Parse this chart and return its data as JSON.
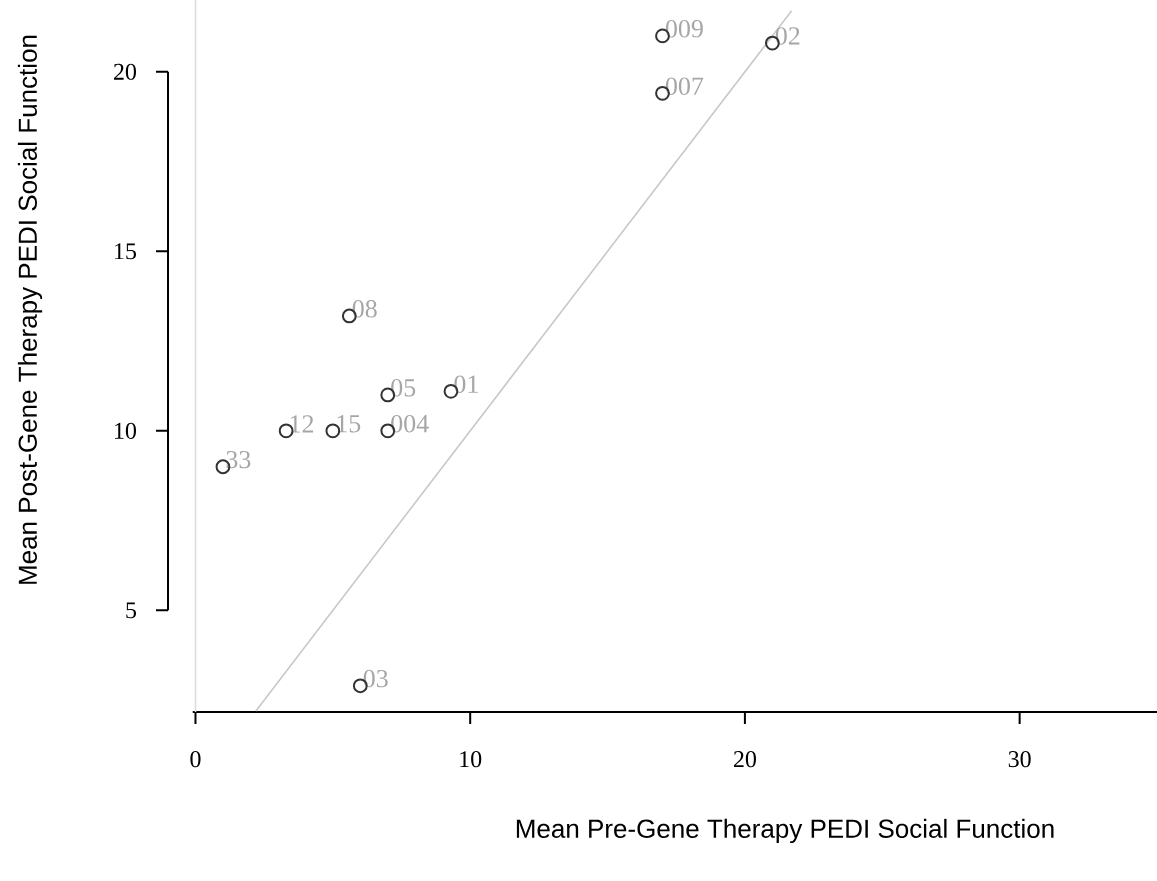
{
  "chart_data": {
    "type": "scatter",
    "xlabel": "Mean Pre-Gene Therapy PEDI Social Function",
    "ylabel": "Mean Post-Gene Therapy PEDI Social Function",
    "xlim": [
      -1,
      35
    ],
    "ylim": [
      2.17,
      22
    ],
    "xticks": [
      0,
      10,
      20,
      30
    ],
    "yticks": [
      5,
      10,
      15,
      20
    ],
    "marker": "circle",
    "grid": false,
    "series": [
      {
        "color": "#333333",
        "x": [
          17,
          21,
          17,
          5.6,
          7,
          9.3,
          3.3,
          5,
          7,
          1,
          6
        ],
        "values": [
          21,
          20.8,
          19.4,
          13.2,
          11,
          11.1,
          10,
          10,
          10,
          9,
          2.9
        ]
      },
      {
        "type": "line",
        "color": "#c8c8c8",
        "marker": "none",
        "x": [
          2.2,
          21.7
        ],
        "values": [
          2.2,
          21.7
        ]
      }
    ],
    "ref_lines": [
      {
        "axis": "x",
        "value": 0,
        "color": "#dcdcdc"
      }
    ],
    "annotations": [
      {
        "text": "009",
        "x": 17,
        "y": 21
      },
      {
        "text": "02",
        "x": 21,
        "y": 20.8
      },
      {
        "text": "007",
        "x": 17,
        "y": 19.4
      },
      {
        "text": "08",
        "x": 5.6,
        "y": 13.2
      },
      {
        "text": "05",
        "x": 7,
        "y": 11
      },
      {
        "text": "01",
        "x": 9.3,
        "y": 11.1
      },
      {
        "text": "12",
        "x": 3.3,
        "y": 10
      },
      {
        "text": "15",
        "x": 5,
        "y": 10
      },
      {
        "text": "004",
        "x": 7,
        "y": 10
      },
      {
        "text": "33",
        "x": 1,
        "y": 9
      },
      {
        "text": "03",
        "x": 6,
        "y": 2.9
      }
    ]
  }
}
